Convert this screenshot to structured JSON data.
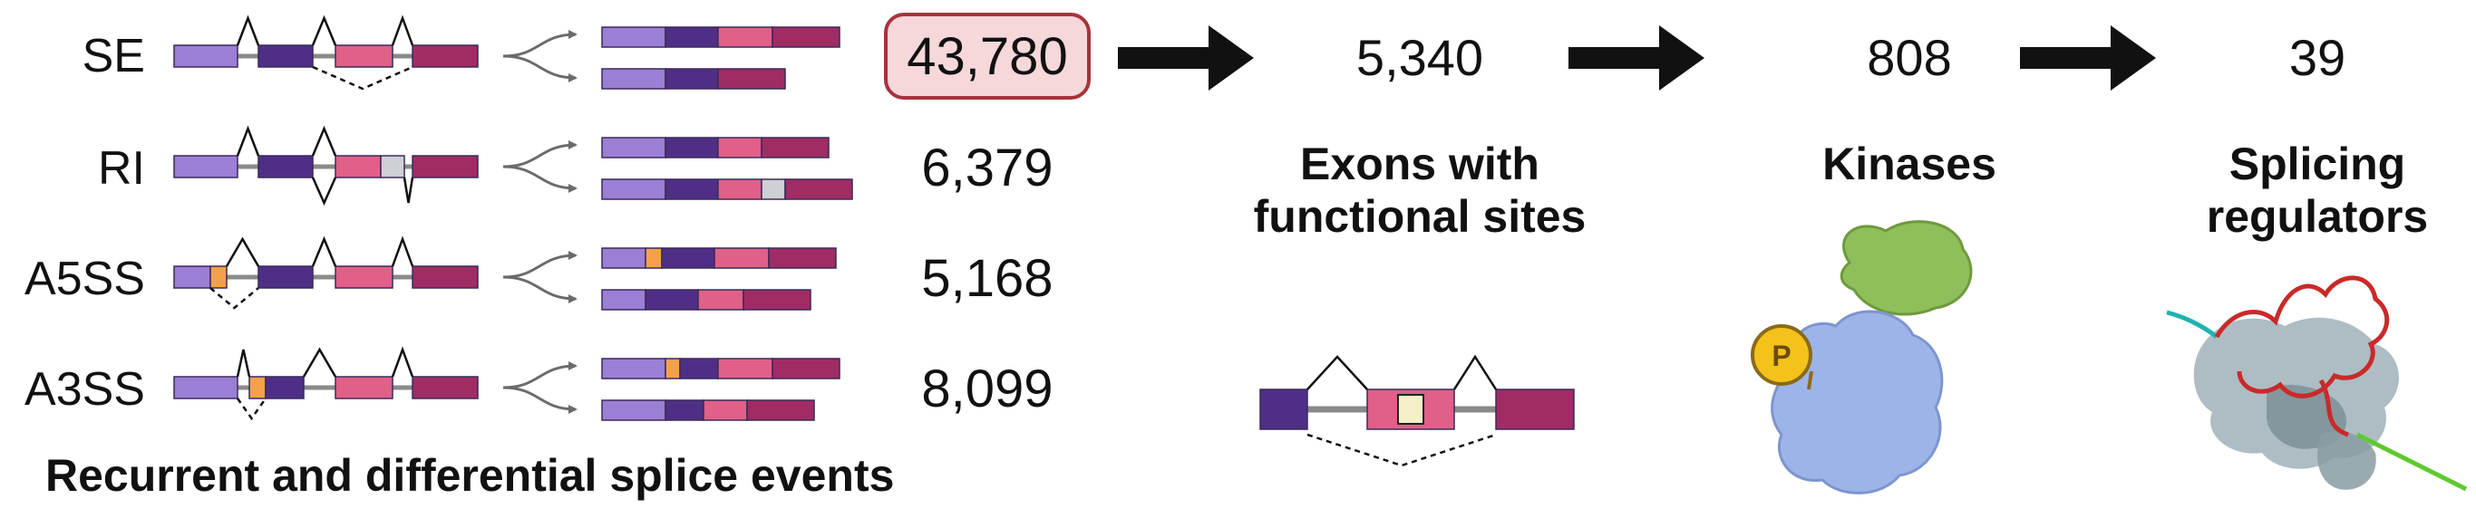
{
  "events": [
    {
      "label": "SE",
      "count": "43,780"
    },
    {
      "label": "RI",
      "count": "6,379"
    },
    {
      "label": "A5SS",
      "count": "5,168"
    },
    {
      "label": "A3SS",
      "count": "8,099"
    }
  ],
  "caption": "Recurrent and differential splice events",
  "stages": [
    {
      "count": "5,340",
      "label": "Exons with functional sites"
    },
    {
      "count": "808",
      "label": "Kinases"
    },
    {
      "count": "39",
      "label": "Splicing regulators"
    }
  ],
  "phospho_label": "P",
  "colors": {
    "exon_light_purple": "#9b7fd4",
    "exon_dark_purple": "#4f2f86",
    "exon_pink": "#e06088",
    "exon_maroon": "#a02c64",
    "alt_site_orange": "#f5a04a",
    "retained_intron_gray": "#cfcfd6",
    "highlight_fill": "#f6d7da",
    "highlight_border": "#a8323d",
    "kinase_blue": "#9db4e8",
    "protein_green": "#8fbf5a",
    "phosphate_yellow": "#f3c21b"
  }
}
